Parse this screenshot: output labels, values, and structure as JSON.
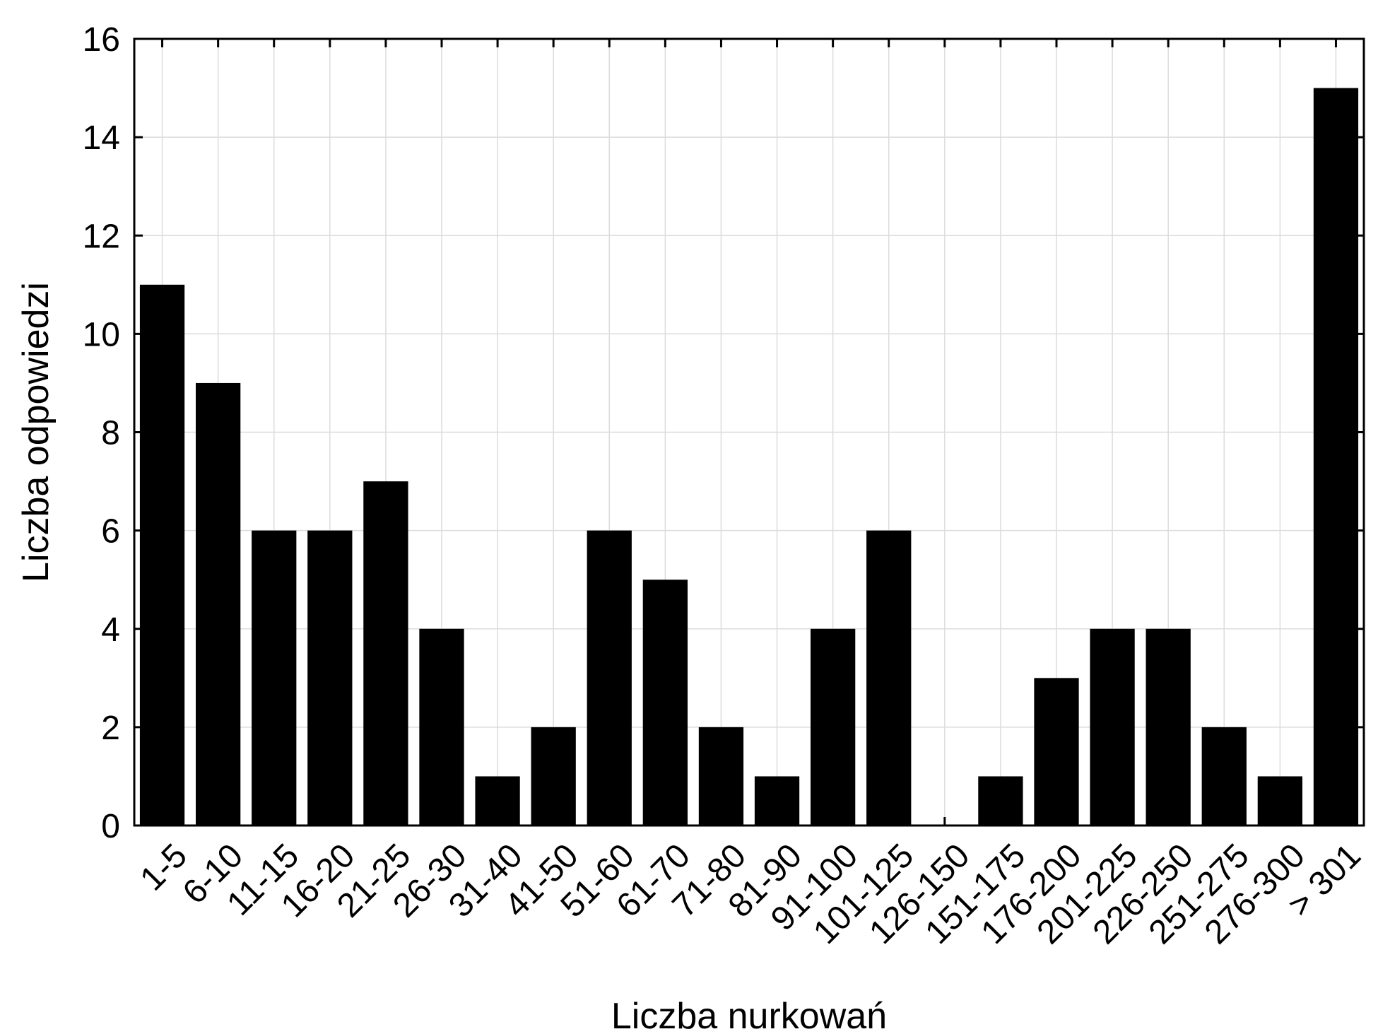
{
  "chart_data": {
    "type": "bar",
    "categories": [
      "1-5",
      "6-10",
      "11-15",
      "16-20",
      "21-25",
      "26-30",
      "31-40",
      "41-50",
      "51-60",
      "61-70",
      "71-80",
      "81-90",
      "91-100",
      "101-125",
      "126-150",
      "151-175",
      "176-200",
      "201-225",
      "226-250",
      "251-275",
      "276-300",
      "> 301"
    ],
    "values": [
      11,
      9,
      6,
      6,
      7,
      4,
      1,
      2,
      6,
      5,
      2,
      1,
      4,
      6,
      0,
      1,
      3,
      4,
      4,
      2,
      1,
      15
    ],
    "xlabel": "Liczba nurkowań",
    "ylabel": "Liczba odpowiedzi",
    "ylim": [
      0,
      16
    ],
    "yticks": [
      0,
      2,
      4,
      6,
      8,
      10,
      12,
      14,
      16
    ],
    "grid": true,
    "bar_color": "#000000",
    "grid_color": "#dcdcdc"
  }
}
